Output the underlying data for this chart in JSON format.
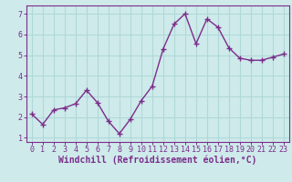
{
  "x": [
    0,
    1,
    2,
    3,
    4,
    5,
    6,
    7,
    8,
    9,
    10,
    11,
    12,
    13,
    14,
    15,
    16,
    17,
    18,
    19,
    20,
    21,
    22,
    23
  ],
  "y": [
    2.15,
    1.65,
    2.35,
    2.45,
    2.65,
    3.3,
    2.7,
    1.8,
    1.2,
    1.9,
    2.8,
    3.5,
    5.3,
    6.5,
    7.0,
    5.55,
    6.75,
    6.35,
    5.35,
    4.85,
    4.75,
    4.75,
    4.9,
    5.05
  ],
  "line_color": "#7b2d8b",
  "marker": "+",
  "marker_size": 5,
  "bg_color": "#ceeaea",
  "grid_color": "#b0d8d8",
  "xlabel": "Windchill (Refroidissement éolien,°C)",
  "xlabel_color": "#7b2d8b",
  "tick_color": "#7b2d8b",
  "spine_color": "#7b2d8b",
  "xlim": [
    -0.5,
    23.5
  ],
  "ylim": [
    0.8,
    7.4
  ],
  "yticks": [
    1,
    2,
    3,
    4,
    5,
    6,
    7
  ],
  "xticks": [
    0,
    1,
    2,
    3,
    4,
    5,
    6,
    7,
    8,
    9,
    10,
    11,
    12,
    13,
    14,
    15,
    16,
    17,
    18,
    19,
    20,
    21,
    22,
    23
  ],
  "xlabel_fontsize": 7,
  "tick_fontsize": 6,
  "line_width": 1.0,
  "marker_edge_width": 1.0
}
